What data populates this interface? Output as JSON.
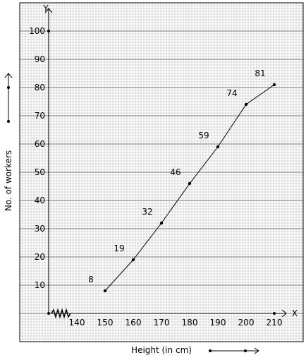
{
  "chart_data": {
    "type": "line",
    "x": [
      150,
      160,
      170,
      180,
      190,
      200,
      210
    ],
    "series": [
      {
        "values": [
          8,
          19,
          32,
          46,
          59,
          74,
          81
        ]
      }
    ],
    "point_labels": [
      "8",
      "19",
      "32",
      "46",
      "59",
      "74",
      "81"
    ],
    "x_ticks": [
      "140",
      "150",
      "160",
      "170",
      "180",
      "190",
      "200",
      "210"
    ],
    "y_ticks": [
      "10",
      "20",
      "30",
      "40",
      "50",
      "60",
      "70",
      "80",
      "90",
      "100"
    ],
    "xlabel": "Height (in cm)",
    "ylabel": "No. of workers",
    "x_axis_letter": "X",
    "y_axis_letter": "Y",
    "xlim": [
      130,
      210
    ],
    "ylim": [
      0,
      100
    ],
    "x_axis_break": true,
    "grid": true,
    "legend": "none",
    "colors": {
      "line": "#000000",
      "grid": "#b8b8b8",
      "background": "#ffffff"
    }
  }
}
